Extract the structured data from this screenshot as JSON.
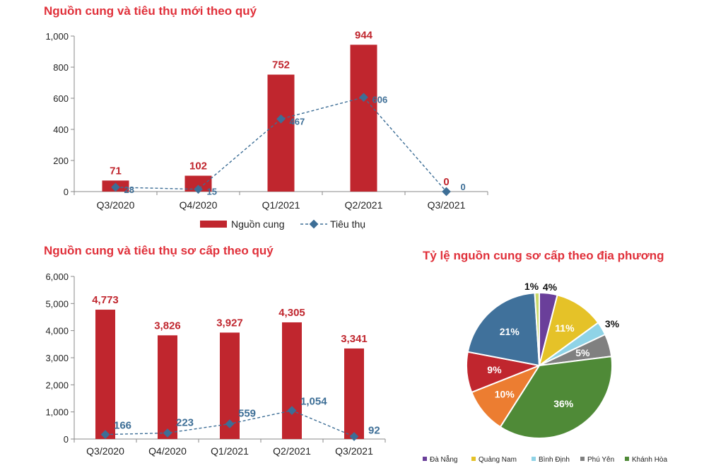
{
  "chart_data": [
    {
      "type": "bar",
      "title": "Nguồn cung và tiêu thụ mới theo quý",
      "categories": [
        "Q3/2020",
        "Q4/2020",
        "Q1/2021",
        "Q2/2021",
        "Q3/2021"
      ],
      "series": [
        {
          "name": "Nguồn cung",
          "kind": "bar",
          "color": "#c0262e",
          "values": [
            71,
            102,
            752,
            944,
            0
          ]
        },
        {
          "name": "Tiêu thụ",
          "kind": "line",
          "color": "#3d6e96",
          "values": [
            28,
            15,
            467,
            606,
            0
          ]
        }
      ],
      "ylim": [
        0,
        1000
      ],
      "yticks": [
        "0",
        "200",
        "400",
        "600",
        "800",
        "1,000"
      ],
      "bar_labels": [
        "71",
        "102",
        "752",
        "944",
        "0"
      ],
      "line_labels": [
        "28",
        "15",
        "467",
        "606",
        "0"
      ],
      "legend": "bottom"
    },
    {
      "type": "bar",
      "title": "Nguồn cung và tiêu thụ sơ cấp theo quý",
      "categories": [
        "Q3/2020",
        "Q4/2020",
        "Q1/2021",
        "Q2/2021",
        "Q3/2021"
      ],
      "series": [
        {
          "kind": "bar",
          "color": "#c0262e",
          "values": [
            4773,
            3826,
            3927,
            4305,
            3341
          ]
        },
        {
          "kind": "line",
          "color": "#3d6e96",
          "values": [
            166,
            223,
            559,
            1054,
            92
          ]
        }
      ],
      "ylim": [
        0,
        6000
      ],
      "yticks": [
        "0",
        "1,000",
        "2,000",
        "3,000",
        "4,000",
        "5,000",
        "6,000"
      ],
      "bar_labels": [
        "4,773",
        "3,826",
        "3,927",
        "4,305",
        "3,341"
      ],
      "line_labels": [
        "166",
        "223",
        "559",
        "1,054",
        "92"
      ]
    },
    {
      "type": "pie",
      "title": "Tỷ lệ nguồn cung sơ cấp theo địa phương",
      "slices": [
        {
          "label": "Đà Nẵng",
          "value": 4,
          "text": "4%",
          "color": "#6a3f9a"
        },
        {
          "label": "Quảng Nam",
          "value": 11,
          "text": "11%",
          "color": "#e5c228"
        },
        {
          "label": "Bình Định",
          "value": 3,
          "text": "3%",
          "color": "#8fd3e6"
        },
        {
          "label": "Phú Yên",
          "value": 5,
          "text": "5%",
          "color": "#808080"
        },
        {
          "label": "Khánh Hòa",
          "value": 36,
          "text": "36%",
          "color": "#4f8a37"
        },
        {
          "value": 10,
          "text": "10%",
          "color": "#ec7d31"
        },
        {
          "value": 9,
          "text": "9%",
          "color": "#c0262e"
        },
        {
          "value": 21,
          "text": "21%",
          "color": "#40719b"
        },
        {
          "value": 1,
          "text": "1%",
          "color": "#c9d96b"
        }
      ],
      "legend": "bottom"
    }
  ]
}
